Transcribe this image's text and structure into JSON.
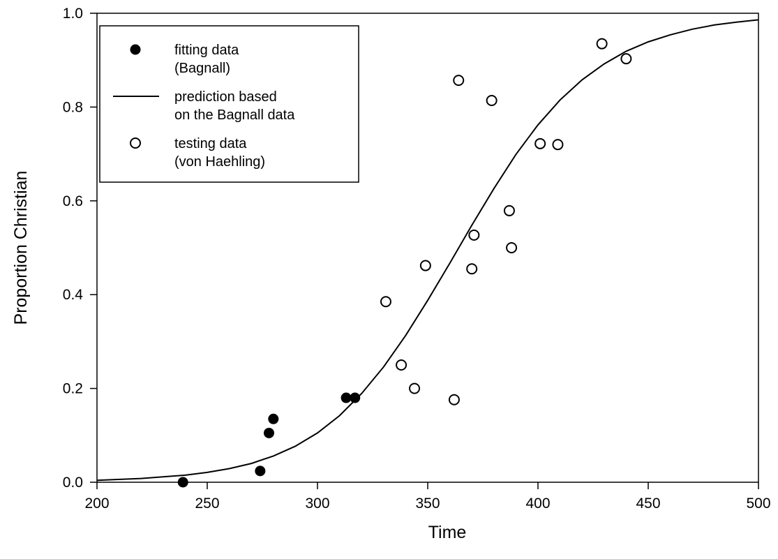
{
  "chart_data": {
    "type": "scatter",
    "title": "",
    "xlabel": "Time",
    "ylabel": "Proportion Christian",
    "xlim": [
      200,
      500
    ],
    "ylim": [
      0,
      1
    ],
    "xticks": [
      200,
      250,
      300,
      350,
      400,
      450,
      500
    ],
    "yticks": [
      0.0,
      0.2,
      0.4,
      0.6,
      0.8,
      1.0
    ],
    "xtick_labels": [
      "200",
      "250",
      "300",
      "350",
      "400",
      "450",
      "500"
    ],
    "ytick_labels": [
      "0.0",
      "0.2",
      "0.4",
      "0.6",
      "0.8",
      "1.0"
    ],
    "grid": false,
    "legend_position": "top-left",
    "series": [
      {
        "name": "fitting data (Bagnall)",
        "legend_lines": [
          "fitting data",
          "(Bagnall)"
        ],
        "style": "filled-circle",
        "x": [
          239,
          274,
          278,
          280,
          313,
          317
        ],
        "y": [
          0.0,
          0.024,
          0.105,
          0.135,
          0.18,
          0.18
        ]
      },
      {
        "name": "prediction based on the Bagnall data",
        "legend_lines": [
          "prediction based",
          "on the Bagnall data"
        ],
        "style": "line",
        "x": [
          200,
          220,
          240,
          250,
          260,
          270,
          280,
          290,
          300,
          310,
          320,
          330,
          340,
          350,
          360,
          370,
          380,
          390,
          400,
          410,
          420,
          430,
          440,
          450,
          460,
          470,
          480,
          490,
          500
        ],
        "y": [
          0.004,
          0.008,
          0.015,
          0.021,
          0.029,
          0.04,
          0.056,
          0.077,
          0.105,
          0.142,
          0.189,
          0.246,
          0.313,
          0.388,
          0.467,
          0.548,
          0.626,
          0.699,
          0.762,
          0.815,
          0.858,
          0.892,
          0.919,
          0.939,
          0.954,
          0.966,
          0.975,
          0.981,
          0.986
        ]
      },
      {
        "name": "testing data (von Haehling)",
        "legend_lines": [
          "testing data",
          "(von Haehling)"
        ],
        "style": "open-circle",
        "x": [
          331,
          338,
          344,
          349,
          362,
          364,
          370,
          371,
          379,
          387,
          388,
          401,
          409,
          429,
          440
        ],
        "y": [
          0.385,
          0.25,
          0.2,
          0.462,
          0.176,
          0.857,
          0.455,
          0.527,
          0.814,
          0.579,
          0.5,
          0.722,
          0.72,
          0.935,
          0.903
        ]
      }
    ]
  }
}
